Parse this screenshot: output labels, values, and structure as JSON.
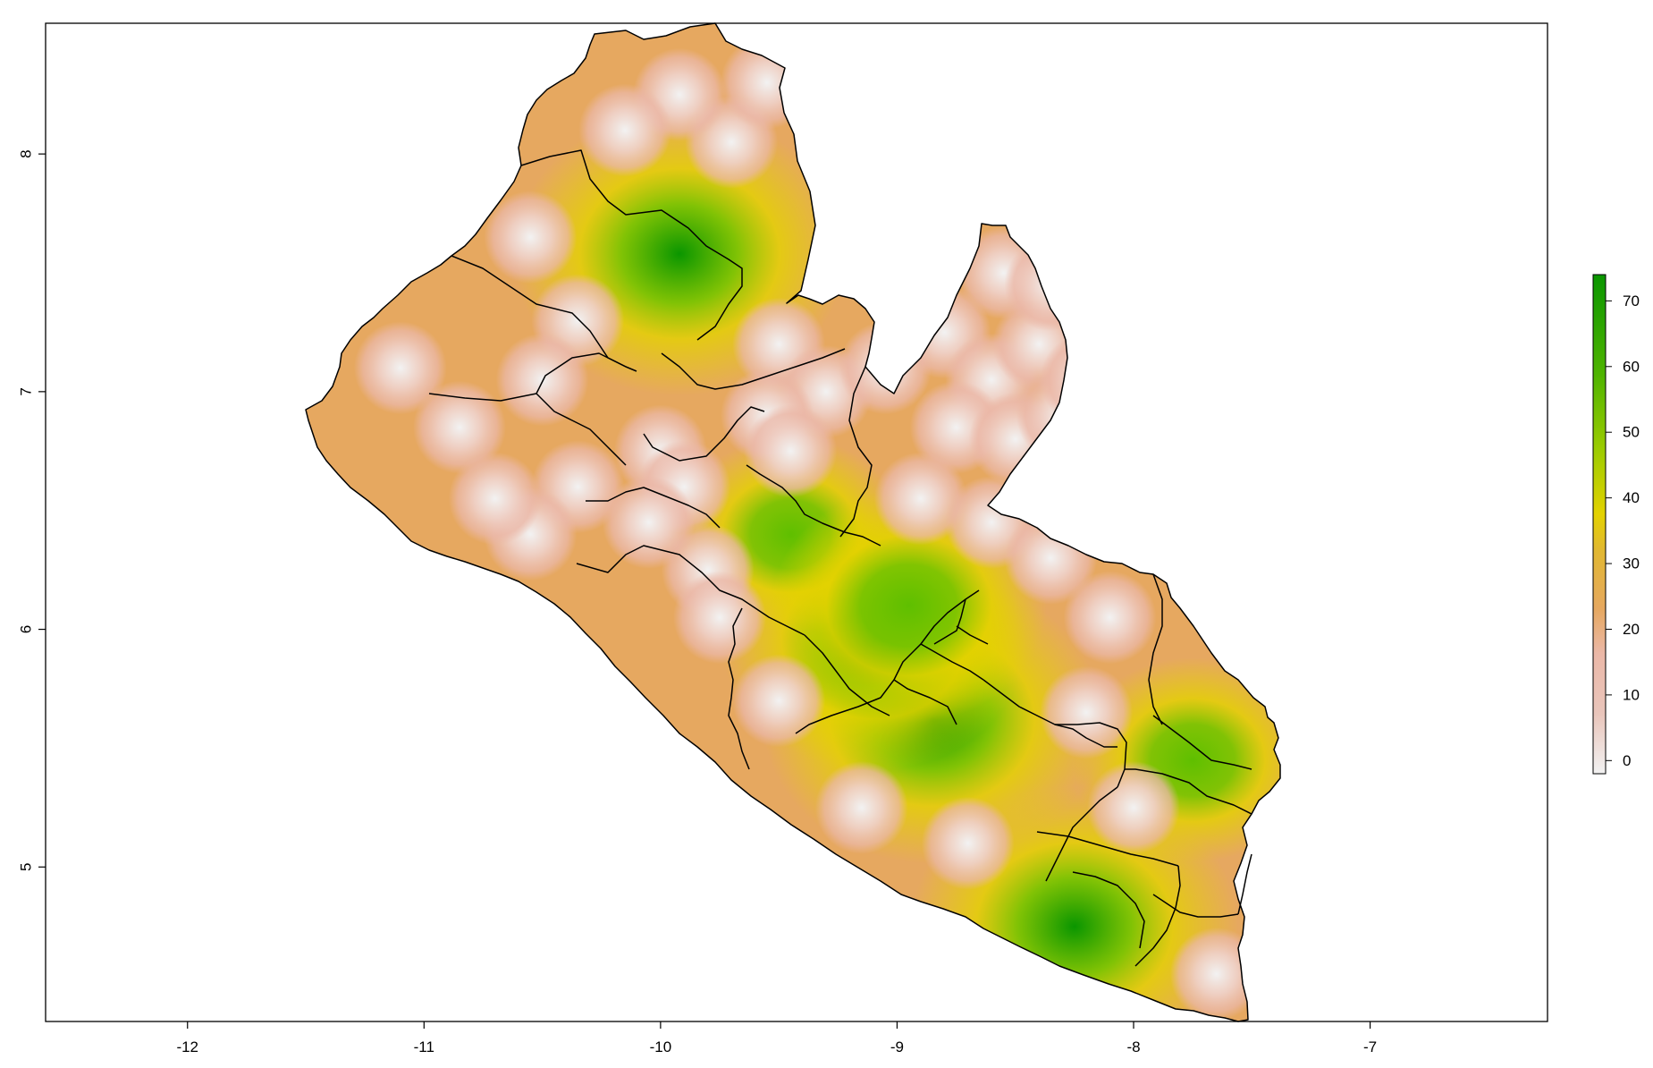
{
  "chart_data": {
    "type": "heatmap",
    "title": "",
    "xlabel": "",
    "ylabel": "",
    "x_ticks": [
      "-12",
      "-11",
      "-10",
      "-9",
      "-8",
      "-7"
    ],
    "y_ticks": [
      "5",
      "6",
      "7",
      "8"
    ],
    "x_tick_values": [
      -12,
      -11,
      -10,
      -9,
      -8,
      -7
    ],
    "y_tick_values": [
      5,
      6,
      7,
      8
    ],
    "xlim": [
      -12.6,
      -6.25
    ],
    "ylim": [
      4.35,
      8.55
    ],
    "legend": {
      "placement": "right",
      "ticks": [
        "0",
        "10",
        "20",
        "30",
        "40",
        "50",
        "60",
        "70"
      ],
      "tick_values": [
        0,
        10,
        20,
        30,
        40,
        50,
        60,
        70
      ],
      "range": [
        -2,
        74
      ]
    },
    "colors": {
      "low": "#f2f2f2",
      "pink": "#ebb8a8",
      "orange": "#e6a860",
      "yellow": "#e3d200",
      "green": "#0a9600"
    },
    "grid": false,
    "hotspots": [
      {
        "lon": -8.85,
        "lat": 5.62,
        "value": 74
      },
      {
        "lon": -8.25,
        "lat": 4.75,
        "value": 70
      },
      {
        "lon": -9.92,
        "lat": 7.58,
        "value": 72
      },
      {
        "lon": -9.1,
        "lat": 5.95,
        "value": 62
      },
      {
        "lon": -7.75,
        "lat": 5.45,
        "value": 40
      },
      {
        "lon": -9.45,
        "lat": 6.4,
        "value": 36
      },
      {
        "lon": -8.95,
        "lat": 6.1,
        "value": 52
      }
    ],
    "cold_spots": [
      {
        "lon": -9.7,
        "lat": 8.05
      },
      {
        "lon": -9.92,
        "lat": 8.25
      },
      {
        "lon": -9.55,
        "lat": 8.3
      },
      {
        "lon": -10.15,
        "lat": 8.1
      },
      {
        "lon": -10.55,
        "lat": 7.65
      },
      {
        "lon": -10.35,
        "lat": 7.3
      },
      {
        "lon": -10.5,
        "lat": 7.05
      },
      {
        "lon": -11.1,
        "lat": 7.1
      },
      {
        "lon": -10.85,
        "lat": 6.85
      },
      {
        "lon": -9.5,
        "lat": 7.2
      },
      {
        "lon": -9.3,
        "lat": 7.0
      },
      {
        "lon": -9.55,
        "lat": 6.9
      },
      {
        "lon": -9.45,
        "lat": 6.75
      },
      {
        "lon": -10.0,
        "lat": 6.75
      },
      {
        "lon": -10.35,
        "lat": 6.6
      },
      {
        "lon": -10.55,
        "lat": 6.4
      },
      {
        "lon": -10.7,
        "lat": 6.55
      },
      {
        "lon": -9.8,
        "lat": 6.25
      },
      {
        "lon": -9.75,
        "lat": 6.05
      },
      {
        "lon": -9.5,
        "lat": 5.7
      },
      {
        "lon": -9.05,
        "lat": 7.1
      },
      {
        "lon": -8.8,
        "lat": 7.25
      },
      {
        "lon": -8.6,
        "lat": 7.05
      },
      {
        "lon": -8.4,
        "lat": 7.2
      },
      {
        "lon": -8.75,
        "lat": 6.85
      },
      {
        "lon": -8.5,
        "lat": 6.8
      },
      {
        "lon": -8.3,
        "lat": 6.9
      },
      {
        "lon": -8.9,
        "lat": 6.55
      },
      {
        "lon": -8.6,
        "lat": 6.45
      },
      {
        "lon": -8.55,
        "lat": 7.5
      },
      {
        "lon": -8.35,
        "lat": 7.45
      },
      {
        "lon": -8.2,
        "lat": 7.05
      },
      {
        "lon": -8.1,
        "lat": 6.65
      },
      {
        "lon": -8.35,
        "lat": 6.3
      },
      {
        "lon": -8.1,
        "lat": 6.05
      },
      {
        "lon": -8.2,
        "lat": 5.65
      },
      {
        "lon": -8.0,
        "lat": 5.25
      },
      {
        "lon": -7.65,
        "lat": 4.55
      },
      {
        "lon": -9.15,
        "lat": 5.25
      },
      {
        "lon": -8.7,
        "lat": 5.1
      },
      {
        "lon": -9.9,
        "lat": 6.6
      },
      {
        "lon": -10.05,
        "lat": 6.45
      }
    ]
  }
}
